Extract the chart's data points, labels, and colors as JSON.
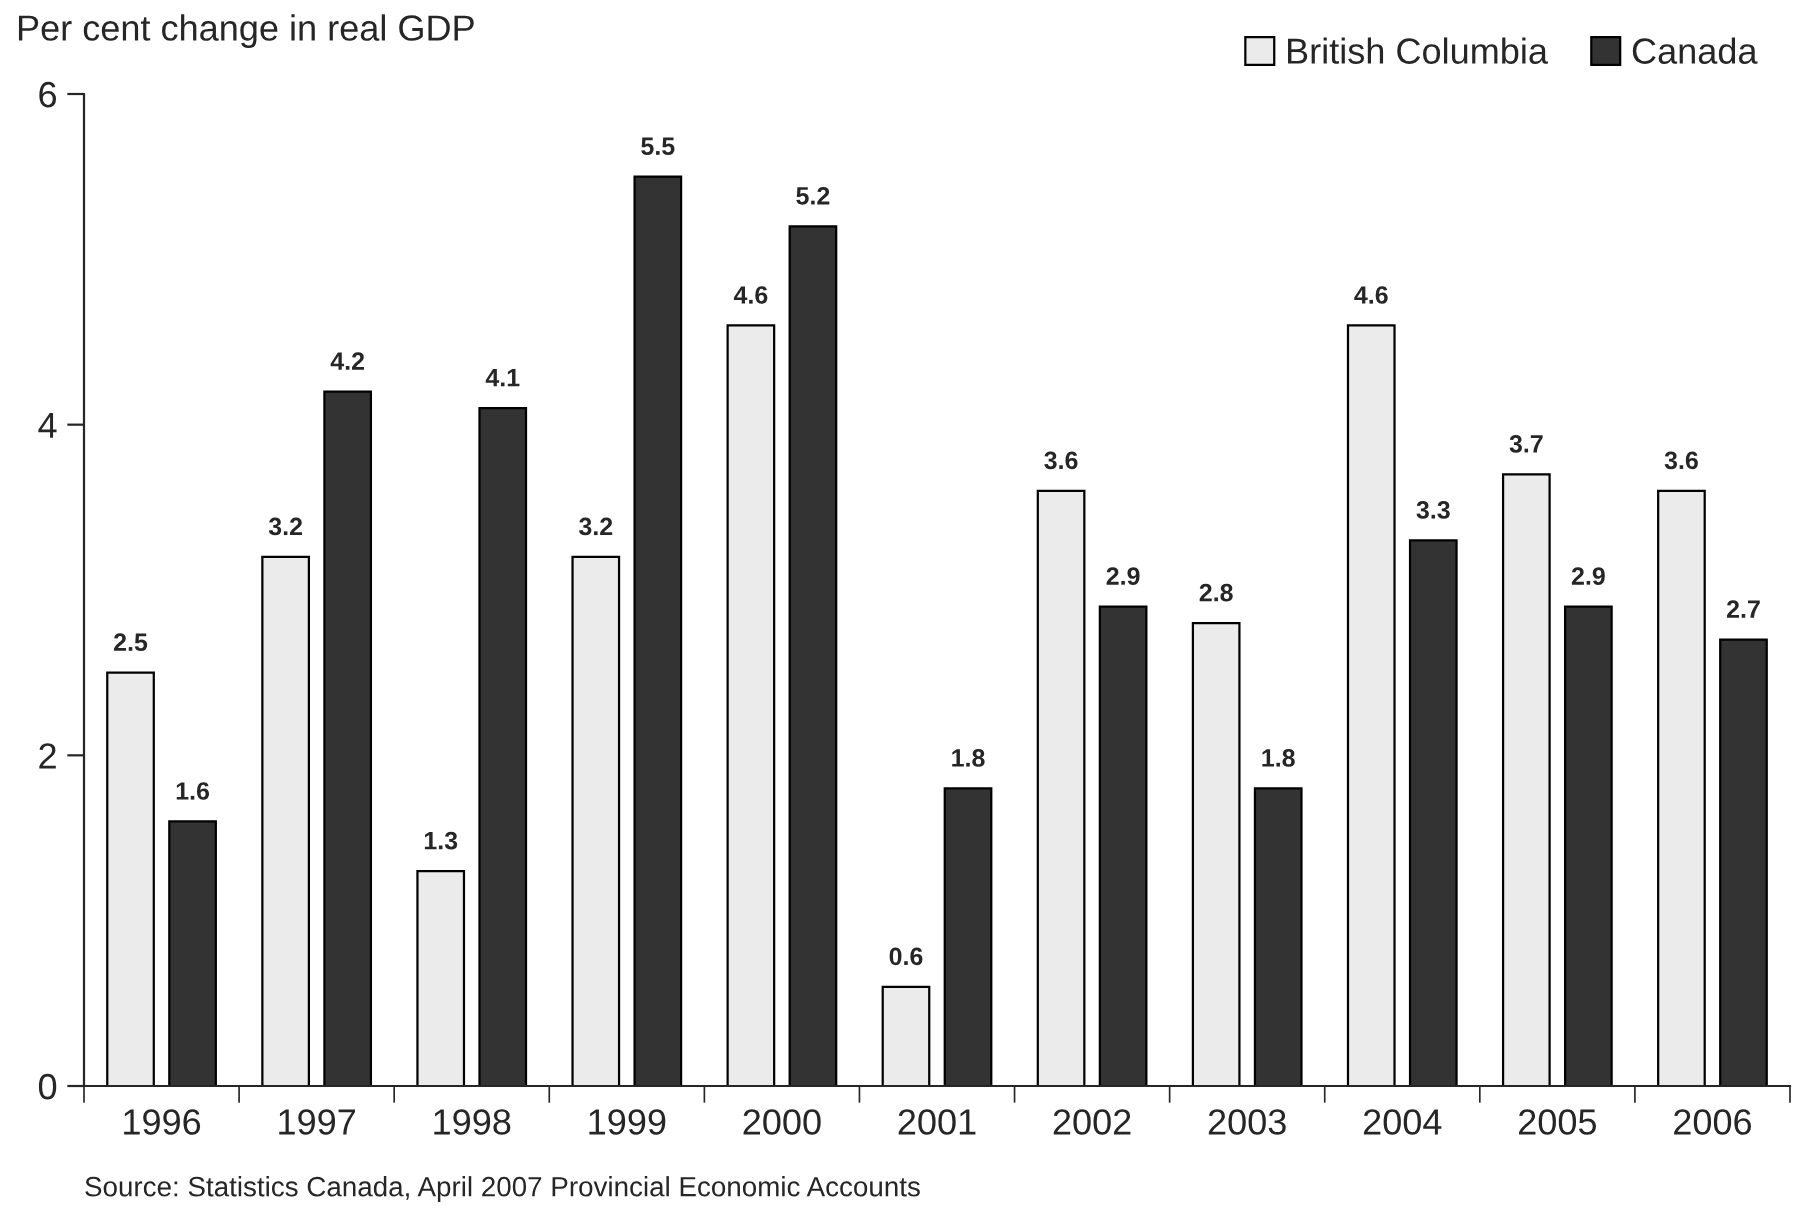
{
  "chart_data": {
    "type": "bar",
    "ylabel": "Per cent change in real GDP",
    "categories": [
      "1996",
      "1997",
      "1998",
      "1999",
      "2000",
      "2001",
      "2002",
      "2003",
      "2004",
      "2005",
      "2006"
    ],
    "series": [
      {
        "name": "British Columbia",
        "color": "#ebebeb",
        "values": [
          2.5,
          3.2,
          1.3,
          3.2,
          4.6,
          0.6,
          3.6,
          2.8,
          4.6,
          3.7,
          3.6
        ]
      },
      {
        "name": "Canada",
        "color": "#333333",
        "values": [
          1.6,
          4.2,
          4.1,
          5.5,
          5.2,
          1.8,
          2.9,
          1.8,
          3.3,
          2.9,
          2.7
        ]
      }
    ],
    "ylim": [
      0,
      6
    ],
    "yticks": [
      0,
      2,
      4,
      6
    ],
    "data_labels": true,
    "legend": "top right",
    "grid": false,
    "annotations": [
      "Source: Statistics Canada, April 2007 Provincial Economic Accounts"
    ]
  }
}
